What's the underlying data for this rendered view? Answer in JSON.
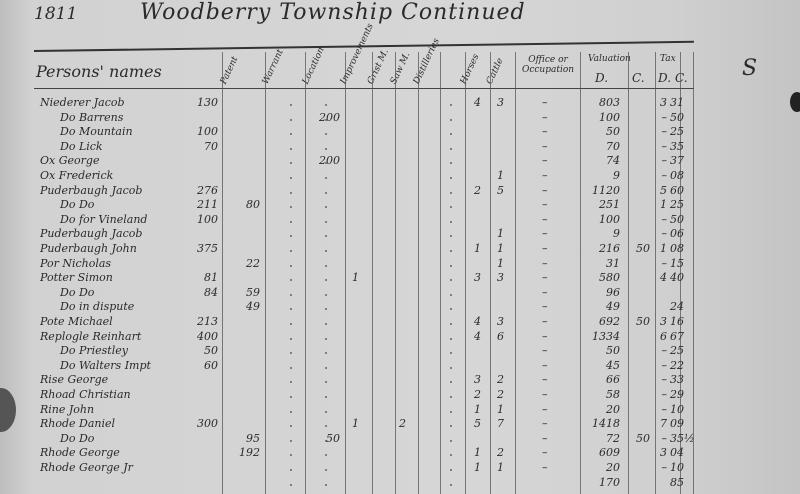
{
  "header": {
    "year": "1811",
    "title": "Woodberry Township Continued"
  },
  "columns": {
    "names": "Persons' names",
    "patent": "Patent",
    "warrant": "Warrant",
    "location": "Location",
    "improvements": "Improvements",
    "grist_mill": "Grist M.",
    "saw_mill": "Saw M.",
    "distilleries": "Distilleries",
    "horses": "Horses",
    "cattle": "Cattle",
    "office": "Office or Occupation",
    "valuation": "Valuation",
    "valuation_d": "D.",
    "valuation_c": "C.",
    "tax": "Tax",
    "tax_d": "D.",
    "tax_c": "C."
  },
  "margin_mark": "S",
  "rows": [
    {
      "name": "Niederer Jacob",
      "patent": "130",
      "warrant": "",
      "improvements": "",
      "grist": "",
      "saw": "",
      "horses": "4",
      "cattle": "3",
      "office": "–",
      "val_d": "803",
      "val_c": "",
      "tax_d": "3",
      "tax_c": "31"
    },
    {
      "name": "Do Barrens",
      "patent": "",
      "warrant": "",
      "improvements": "200",
      "grist": "",
      "saw": "",
      "horses": "",
      "cattle": "",
      "office": "–",
      "val_d": "100",
      "val_c": "",
      "tax_d": "–",
      "tax_c": "50"
    },
    {
      "name": "Do Mountain",
      "patent": "100",
      "warrant": "",
      "improvements": "",
      "grist": "",
      "saw": "",
      "horses": "",
      "cattle": "",
      "office": "–",
      "val_d": "50",
      "val_c": "",
      "tax_d": "–",
      "tax_c": "25"
    },
    {
      "name": "Do Lick",
      "patent": "70",
      "warrant": "",
      "improvements": "",
      "grist": "",
      "saw": "",
      "horses": "",
      "cattle": "",
      "office": "–",
      "val_d": "70",
      "val_c": "",
      "tax_d": "–",
      "tax_c": "35"
    },
    {
      "name": "Ox George",
      "patent": "",
      "warrant": "",
      "improvements": "200",
      "grist": "",
      "saw": "",
      "horses": "",
      "cattle": "",
      "office": "–",
      "val_d": "74",
      "val_c": "",
      "tax_d": "–",
      "tax_c": "37"
    },
    {
      "name": "Ox Frederick",
      "patent": "",
      "warrant": "",
      "improvements": "",
      "grist": "",
      "saw": "",
      "horses": "",
      "cattle": "1",
      "office": "–",
      "val_d": "9",
      "val_c": "",
      "tax_d": "–",
      "tax_c": "08"
    },
    {
      "name": "Puderbaugh Jacob",
      "patent": "276",
      "warrant": "",
      "improvements": "",
      "grist": "",
      "saw": "",
      "horses": "2",
      "cattle": "5",
      "office": "–",
      "val_d": "1120",
      "val_c": "",
      "tax_d": "5",
      "tax_c": "60"
    },
    {
      "name": "Do Do",
      "patent": "211",
      "warrant": "80",
      "improvements": "",
      "grist": "",
      "saw": "",
      "horses": "",
      "cattle": "",
      "office": "–",
      "val_d": "251",
      "val_c": "",
      "tax_d": "1",
      "tax_c": "25"
    },
    {
      "name": "Do for Vineland",
      "patent": "100",
      "warrant": "",
      "improvements": "",
      "grist": "",
      "saw": "",
      "horses": "",
      "cattle": "",
      "office": "–",
      "val_d": "100",
      "val_c": "",
      "tax_d": "–",
      "tax_c": "50"
    },
    {
      "name": "Puderbaugh Jacob",
      "patent": "",
      "warrant": "",
      "improvements": "",
      "grist": "",
      "saw": "",
      "horses": "",
      "cattle": "1",
      "office": "–",
      "val_d": "9",
      "val_c": "",
      "tax_d": "–",
      "tax_c": "06"
    },
    {
      "name": "Puderbaugh John",
      "patent": "375",
      "warrant": "",
      "improvements": "",
      "grist": "",
      "saw": "",
      "horses": "1",
      "cattle": "1",
      "office": "–",
      "val_d": "216",
      "val_c": "50",
      "tax_d": "1",
      "tax_c": "08"
    },
    {
      "name": "Por Nicholas",
      "patent": "",
      "warrant": "22",
      "improvements": "",
      "grist": "",
      "saw": "",
      "horses": "",
      "cattle": "1",
      "office": "–",
      "val_d": "31",
      "val_c": "",
      "tax_d": "–",
      "tax_c": "15"
    },
    {
      "name": "Potter Simon",
      "patent": "81",
      "warrant": "",
      "improvements": "",
      "grist": "1",
      "saw": "",
      "horses": "3",
      "cattle": "3",
      "office": "–",
      "val_d": "580",
      "val_c": "",
      "tax_d": "4",
      "tax_c": "40"
    },
    {
      "name": "Do Do",
      "patent": "84",
      "warrant": "59",
      "improvements": "",
      "grist": "",
      "saw": "",
      "horses": "",
      "cattle": "",
      "office": "–",
      "val_d": "96",
      "val_c": "",
      "tax_d": "",
      "tax_c": ""
    },
    {
      "name": "Do in dispute",
      "patent": "",
      "warrant": "49",
      "improvements": "",
      "grist": "",
      "saw": "",
      "horses": "",
      "cattle": "",
      "office": "–",
      "val_d": "49",
      "val_c": "",
      "tax_d": "",
      "tax_c": "24"
    },
    {
      "name": "Pote Michael",
      "patent": "213",
      "warrant": "",
      "improvements": "",
      "grist": "",
      "saw": "",
      "horses": "4",
      "cattle": "3",
      "office": "–",
      "val_d": "692",
      "val_c": "50",
      "tax_d": "3",
      "tax_c": "16"
    },
    {
      "name": "Replogle Reinhart",
      "patent": "400",
      "warrant": "",
      "improvements": "",
      "grist": "",
      "saw": "",
      "horses": "4",
      "cattle": "6",
      "office": "–",
      "val_d": "1334",
      "val_c": "",
      "tax_d": "6",
      "tax_c": "67"
    },
    {
      "name": "Do Priestley",
      "patent": "50",
      "warrant": "",
      "improvements": "",
      "grist": "",
      "saw": "",
      "horses": "",
      "cattle": "",
      "office": "–",
      "val_d": "50",
      "val_c": "",
      "tax_d": "–",
      "tax_c": "25"
    },
    {
      "name": "Do Walters Impt",
      "patent": "60",
      "warrant": "",
      "improvements": "",
      "grist": "",
      "saw": "",
      "horses": "",
      "cattle": "",
      "office": "–",
      "val_d": "45",
      "val_c": "",
      "tax_d": "–",
      "tax_c": "22"
    },
    {
      "name": "Rise George",
      "patent": "",
      "warrant": "",
      "improvements": "",
      "grist": "",
      "saw": "",
      "horses": "3",
      "cattle": "2",
      "office": "–",
      "val_d": "66",
      "val_c": "",
      "tax_d": "–",
      "tax_c": "33"
    },
    {
      "name": "Rhoad Christian",
      "patent": "",
      "warrant": "",
      "improvements": "",
      "grist": "",
      "saw": "",
      "horses": "2",
      "cattle": "2",
      "office": "–",
      "val_d": "58",
      "val_c": "",
      "tax_d": "–",
      "tax_c": "29"
    },
    {
      "name": "Rine John",
      "patent": "",
      "warrant": "",
      "improvements": "",
      "grist": "",
      "saw": "",
      "horses": "1",
      "cattle": "1",
      "office": "–",
      "val_d": "20",
      "val_c": "",
      "tax_d": "–",
      "tax_c": "10"
    },
    {
      "name": "Rhode Daniel",
      "patent": "300",
      "warrant": "",
      "improvements": "",
      "grist": "1",
      "saw": "2",
      "horses": "5",
      "cattle": "7",
      "office": "–",
      "val_d": "1418",
      "val_c": "",
      "tax_d": "7",
      "tax_c": "09"
    },
    {
      "name": "Do Do",
      "patent": "",
      "warrant": "95",
      "improvements": "50",
      "grist": "",
      "saw": "",
      "horses": "",
      "cattle": "",
      "office": "–",
      "val_d": "72",
      "val_c": "50",
      "tax_d": "–",
      "tax_c": "35½"
    },
    {
      "name": "Rhode George",
      "patent": "",
      "warrant": "192",
      "improvements": "",
      "grist": "",
      "saw": "",
      "horses": "1",
      "cattle": "2",
      "office": "–",
      "val_d": "609",
      "val_c": "",
      "tax_d": "3",
      "tax_c": "04"
    },
    {
      "name": "Rhode George Jr",
      "patent": "",
      "warrant": "",
      "improvements": "",
      "grist": "",
      "saw": "",
      "horses": "1",
      "cattle": "1",
      "office": "–",
      "val_d": "20",
      "val_c": "",
      "tax_d": "–",
      "tax_c": "10"
    },
    {
      "name": "",
      "patent": "",
      "warrant": "",
      "improvements": "",
      "grist": "",
      "saw": "",
      "horses": "",
      "cattle": "",
      "office": "",
      "val_d": "170",
      "val_c": "",
      "tax_d": "",
      "tax_c": "85"
    }
  ]
}
